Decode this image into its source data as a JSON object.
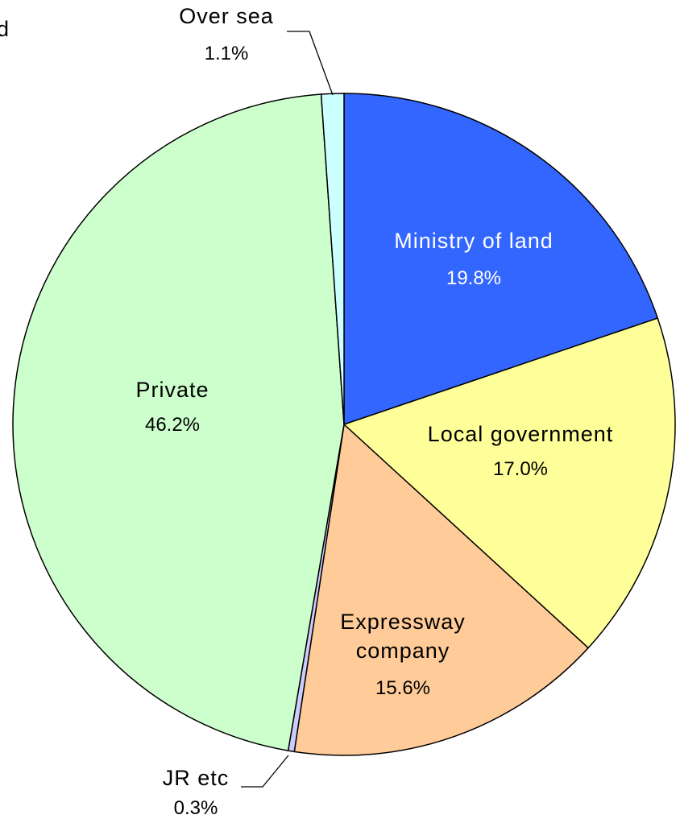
{
  "chart_data": {
    "type": "pie",
    "title": "",
    "slices": [
      {
        "name": "Ministry of land",
        "value": 19.8,
        "label": "19.8%",
        "color": "#3366ff",
        "text_color": "#ffffff"
      },
      {
        "name": "Local government",
        "value": 17.0,
        "label": "17.0%",
        "color": "#ffff99",
        "text_color": "#000000"
      },
      {
        "name": "Expressway company",
        "value": 15.6,
        "label": "15.6%",
        "color": "#ffcc99",
        "text_color": "#000000"
      },
      {
        "name": "JR etc",
        "value": 0.3,
        "label": "0.3%",
        "color": "#ccccff",
        "text_color": "#000000"
      },
      {
        "name": "Private",
        "value": 46.2,
        "label": "46.2%",
        "color": "#ccffcc",
        "text_color": "#000000"
      },
      {
        "name": "Over sea",
        "value": 1.1,
        "label": "1.1%",
        "color": "#ccffff",
        "text_color": "#000000"
      }
    ],
    "start": "12 o'clock",
    "direction": "clockwise",
    "legend": "none"
  },
  "edge_text": "d"
}
